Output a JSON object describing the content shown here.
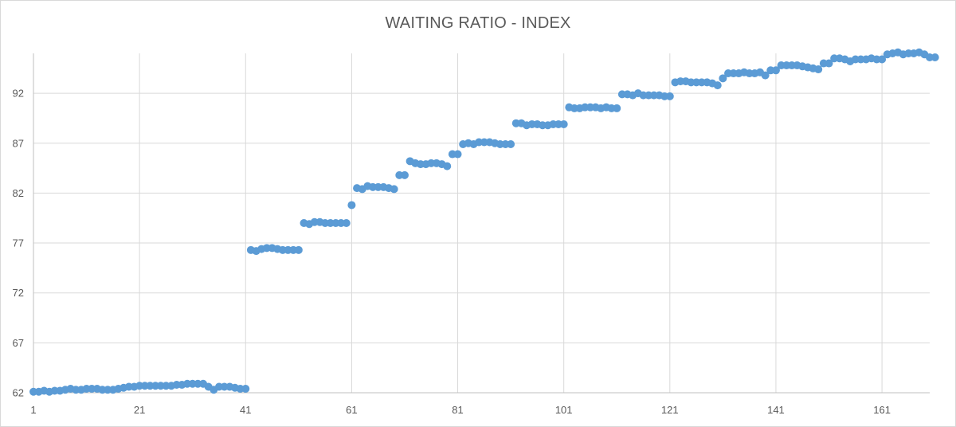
{
  "chart_data": {
    "type": "scatter",
    "title": "WAITING RATIO - INDEX",
    "xlabel": "",
    "ylabel": "",
    "xlim": [
      1,
      170
    ],
    "ylim": [
      62,
      96
    ],
    "x_ticks": [
      1,
      21,
      41,
      61,
      81,
      101,
      121,
      141,
      161
    ],
    "y_ticks": [
      62,
      67,
      72,
      77,
      82,
      87,
      92
    ],
    "grid": true,
    "legend": "none",
    "marker_color": "#5B9BD5",
    "series": [
      {
        "values": [
          62.1,
          62.1,
          62.2,
          62.1,
          62.2,
          62.2,
          62.3,
          62.4,
          62.3,
          62.3,
          62.4,
          62.4,
          62.4,
          62.3,
          62.3,
          62.3,
          62.4,
          62.5,
          62.6,
          62.6,
          62.7,
          62.7,
          62.7,
          62.7,
          62.7,
          62.7,
          62.7,
          62.8,
          62.8,
          62.9,
          62.9,
          62.9,
          62.9,
          62.6,
          62.3,
          62.6,
          62.6,
          62.6,
          62.5,
          62.4,
          62.4,
          76.3,
          76.2,
          76.4,
          76.5,
          76.5,
          76.4,
          76.3,
          76.3,
          76.3,
          76.3,
          79.0,
          78.9,
          79.1,
          79.1,
          79.0,
          79.0,
          79.0,
          79.0,
          79.0,
          80.8,
          82.5,
          82.4,
          82.7,
          82.6,
          82.6,
          82.6,
          82.5,
          82.4,
          83.8,
          83.8,
          85.2,
          85.0,
          84.9,
          84.9,
          85.0,
          85.0,
          84.9,
          84.7,
          85.9,
          85.9,
          86.9,
          87.0,
          86.9,
          87.1,
          87.1,
          87.1,
          87.0,
          86.9,
          86.9,
          86.9,
          89.0,
          89.0,
          88.8,
          88.9,
          88.9,
          88.8,
          88.8,
          88.9,
          88.9,
          88.9,
          90.6,
          90.5,
          90.5,
          90.6,
          90.6,
          90.6,
          90.5,
          90.6,
          90.5,
          90.5,
          91.9,
          91.9,
          91.8,
          92.0,
          91.8,
          91.8,
          91.8,
          91.8,
          91.7,
          91.7,
          93.1,
          93.2,
          93.2,
          93.1,
          93.1,
          93.1,
          93.1,
          93.0,
          92.8,
          93.5,
          94.0,
          94.0,
          94.0,
          94.1,
          94.0,
          94.0,
          94.1,
          93.8,
          94.3,
          94.3,
          94.8,
          94.8,
          94.8,
          94.8,
          94.7,
          94.6,
          94.5,
          94.4,
          95.0,
          95.0,
          95.5,
          95.5,
          95.4,
          95.2,
          95.4,
          95.4,
          95.4,
          95.5,
          95.4,
          95.4,
          95.9,
          96.0,
          96.1,
          95.9,
          96.0,
          96.0,
          96.1,
          95.9,
          95.6,
          95.6
        ]
      }
    ]
  }
}
